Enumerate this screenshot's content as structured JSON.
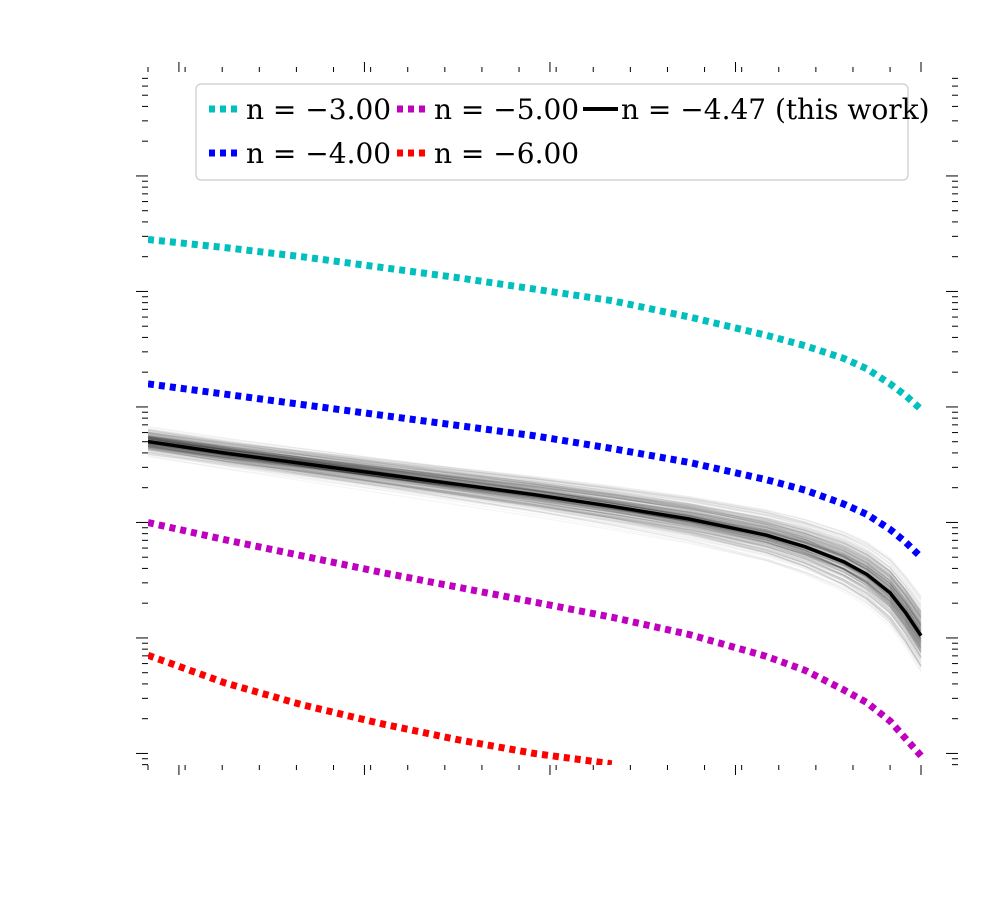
{
  "chart_data": {
    "type": "line",
    "title": "",
    "xlabel": "",
    "ylabel": "",
    "y_scale": "log",
    "tick_labels_shown": false,
    "grid": false,
    "legend": {
      "placement": "top",
      "entries": [
        {
          "label": "n = −3.00",
          "color": "#00bfbf",
          "style": "dotted"
        },
        {
          "label": "n = −5.00",
          "color": "#bf00bf",
          "style": "dotted"
        },
        {
          "label": "n = −4.47 (this work)",
          "color": "#000000",
          "style": "solid"
        },
        {
          "label": "n = −4.00",
          "color": "#0000ff",
          "style": "dotted"
        },
        {
          "label": "n = −6.00",
          "color": "#ff0000",
          "style": "dotted"
        }
      ]
    },
    "series": [
      {
        "name": "n = −3.00",
        "n": -3.0,
        "color": "#00bfbf",
        "style": "dotted",
        "x": [
          0.0,
          0.1,
          0.2,
          0.3,
          0.4,
          0.5,
          0.6,
          0.7,
          0.8,
          0.85,
          0.9,
          0.93,
          0.96,
          0.98,
          1.0
        ],
        "y": [
          2.45,
          2.38,
          2.3,
          2.21,
          2.12,
          2.02,
          1.92,
          1.78,
          1.62,
          1.53,
          1.42,
          1.33,
          1.2,
          1.1,
          0.98
        ]
      },
      {
        "name": "n = −4.00",
        "n": -4.0,
        "color": "#0000ff",
        "style": "dotted",
        "x": [
          0.0,
          0.1,
          0.2,
          0.3,
          0.4,
          0.5,
          0.6,
          0.7,
          0.8,
          0.85,
          0.9,
          0.93,
          0.96,
          0.98,
          1.0
        ],
        "y": [
          1.2,
          1.11,
          1.02,
          0.93,
          0.84,
          0.75,
          0.64,
          0.52,
          0.37,
          0.28,
          0.16,
          0.07,
          -0.06,
          -0.17,
          -0.3
        ]
      },
      {
        "name": "n = −4.47 (this work)",
        "n": -4.47,
        "color": "#000000",
        "style": "solid",
        "x": [
          0.0,
          0.1,
          0.2,
          0.3,
          0.4,
          0.5,
          0.6,
          0.7,
          0.8,
          0.85,
          0.9,
          0.93,
          0.96,
          0.98,
          1.0
        ],
        "y": [
          0.7,
          0.6,
          0.51,
          0.42,
          0.33,
          0.24,
          0.14,
          0.03,
          -0.11,
          -0.21,
          -0.34,
          -0.45,
          -0.61,
          -0.78,
          -0.98
        ]
      },
      {
        "name": "n = −5.00",
        "n": -5.0,
        "color": "#bf00bf",
        "style": "dotted",
        "x": [
          0.0,
          0.1,
          0.2,
          0.3,
          0.4,
          0.5,
          0.6,
          0.7,
          0.8,
          0.85,
          0.9,
          0.93,
          0.96,
          0.98,
          1.0
        ],
        "y": [
          0.0,
          -0.15,
          -0.29,
          -0.43,
          -0.56,
          -0.69,
          -0.82,
          -0.97,
          -1.16,
          -1.28,
          -1.45,
          -1.56,
          -1.72,
          -1.87,
          -2.02
        ]
      },
      {
        "name": "n = −6.00",
        "n": -6.0,
        "color": "#ff0000",
        "style": "dotted",
        "x": [
          0.0,
          0.1,
          0.2,
          0.3,
          0.4,
          0.5,
          0.6
        ],
        "y": [
          -1.15,
          -1.39,
          -1.58,
          -1.74,
          -1.88,
          -2.0,
          -2.09
        ]
      }
    ],
    "uncertainty_band": {
      "type": "posterior_samples",
      "around": "n = −4.47 (this work)",
      "color": "#000000",
      "n_samples": 300,
      "n_range": [
        -4.85,
        -4.1
      ]
    },
    "x_range": [
      0.0,
      1.0
    ],
    "y_range_log10": [
      -2.1,
      3.9
    ],
    "x_major_ticks": [
      0.04,
      0.28,
      0.52,
      0.76,
      1.0
    ],
    "y_major_ticks_log10": [
      3,
      2,
      1,
      0,
      -1,
      -2
    ]
  }
}
